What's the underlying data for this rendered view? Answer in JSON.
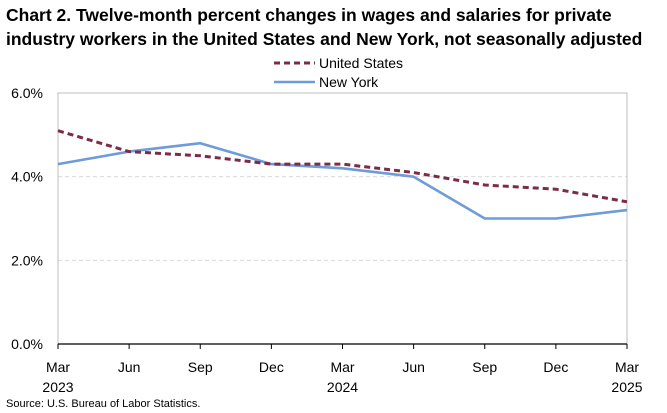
{
  "chart_data": {
    "type": "line",
    "title": "Chart 2. Twelve-month percent changes in wages and salaries for private industry workers in the United States and New York, not seasonally adjusted",
    "categories": [
      "Mar\n2023",
      "Jun",
      "Sep",
      "Dec",
      "Mar\n2024",
      "Jun",
      "Sep",
      "Dec",
      "Mar\n2025"
    ],
    "series": [
      {
        "name": "United States",
        "color": "#7b2c47",
        "dash": "dashed",
        "values": [
          5.1,
          4.6,
          4.5,
          4.3,
          4.3,
          4.1,
          3.8,
          3.7,
          3.4
        ]
      },
      {
        "name": "New York",
        "color": "#6f9bd8",
        "dash": "solid",
        "values": [
          4.3,
          4.6,
          4.8,
          4.3,
          4.2,
          4.0,
          3.0,
          3.0,
          3.2
        ]
      }
    ],
    "yticks": [
      0.0,
      2.0,
      4.0,
      6.0
    ],
    "ytick_labels": [
      "0.0%",
      "2.0%",
      "4.0%",
      "6.0%"
    ],
    "ylim": [
      0,
      6
    ],
    "xlabel": "",
    "ylabel": "",
    "grid": true,
    "legend_position": "top-center"
  },
  "source": "Source: U.S. Bureau of Labor Statistics."
}
